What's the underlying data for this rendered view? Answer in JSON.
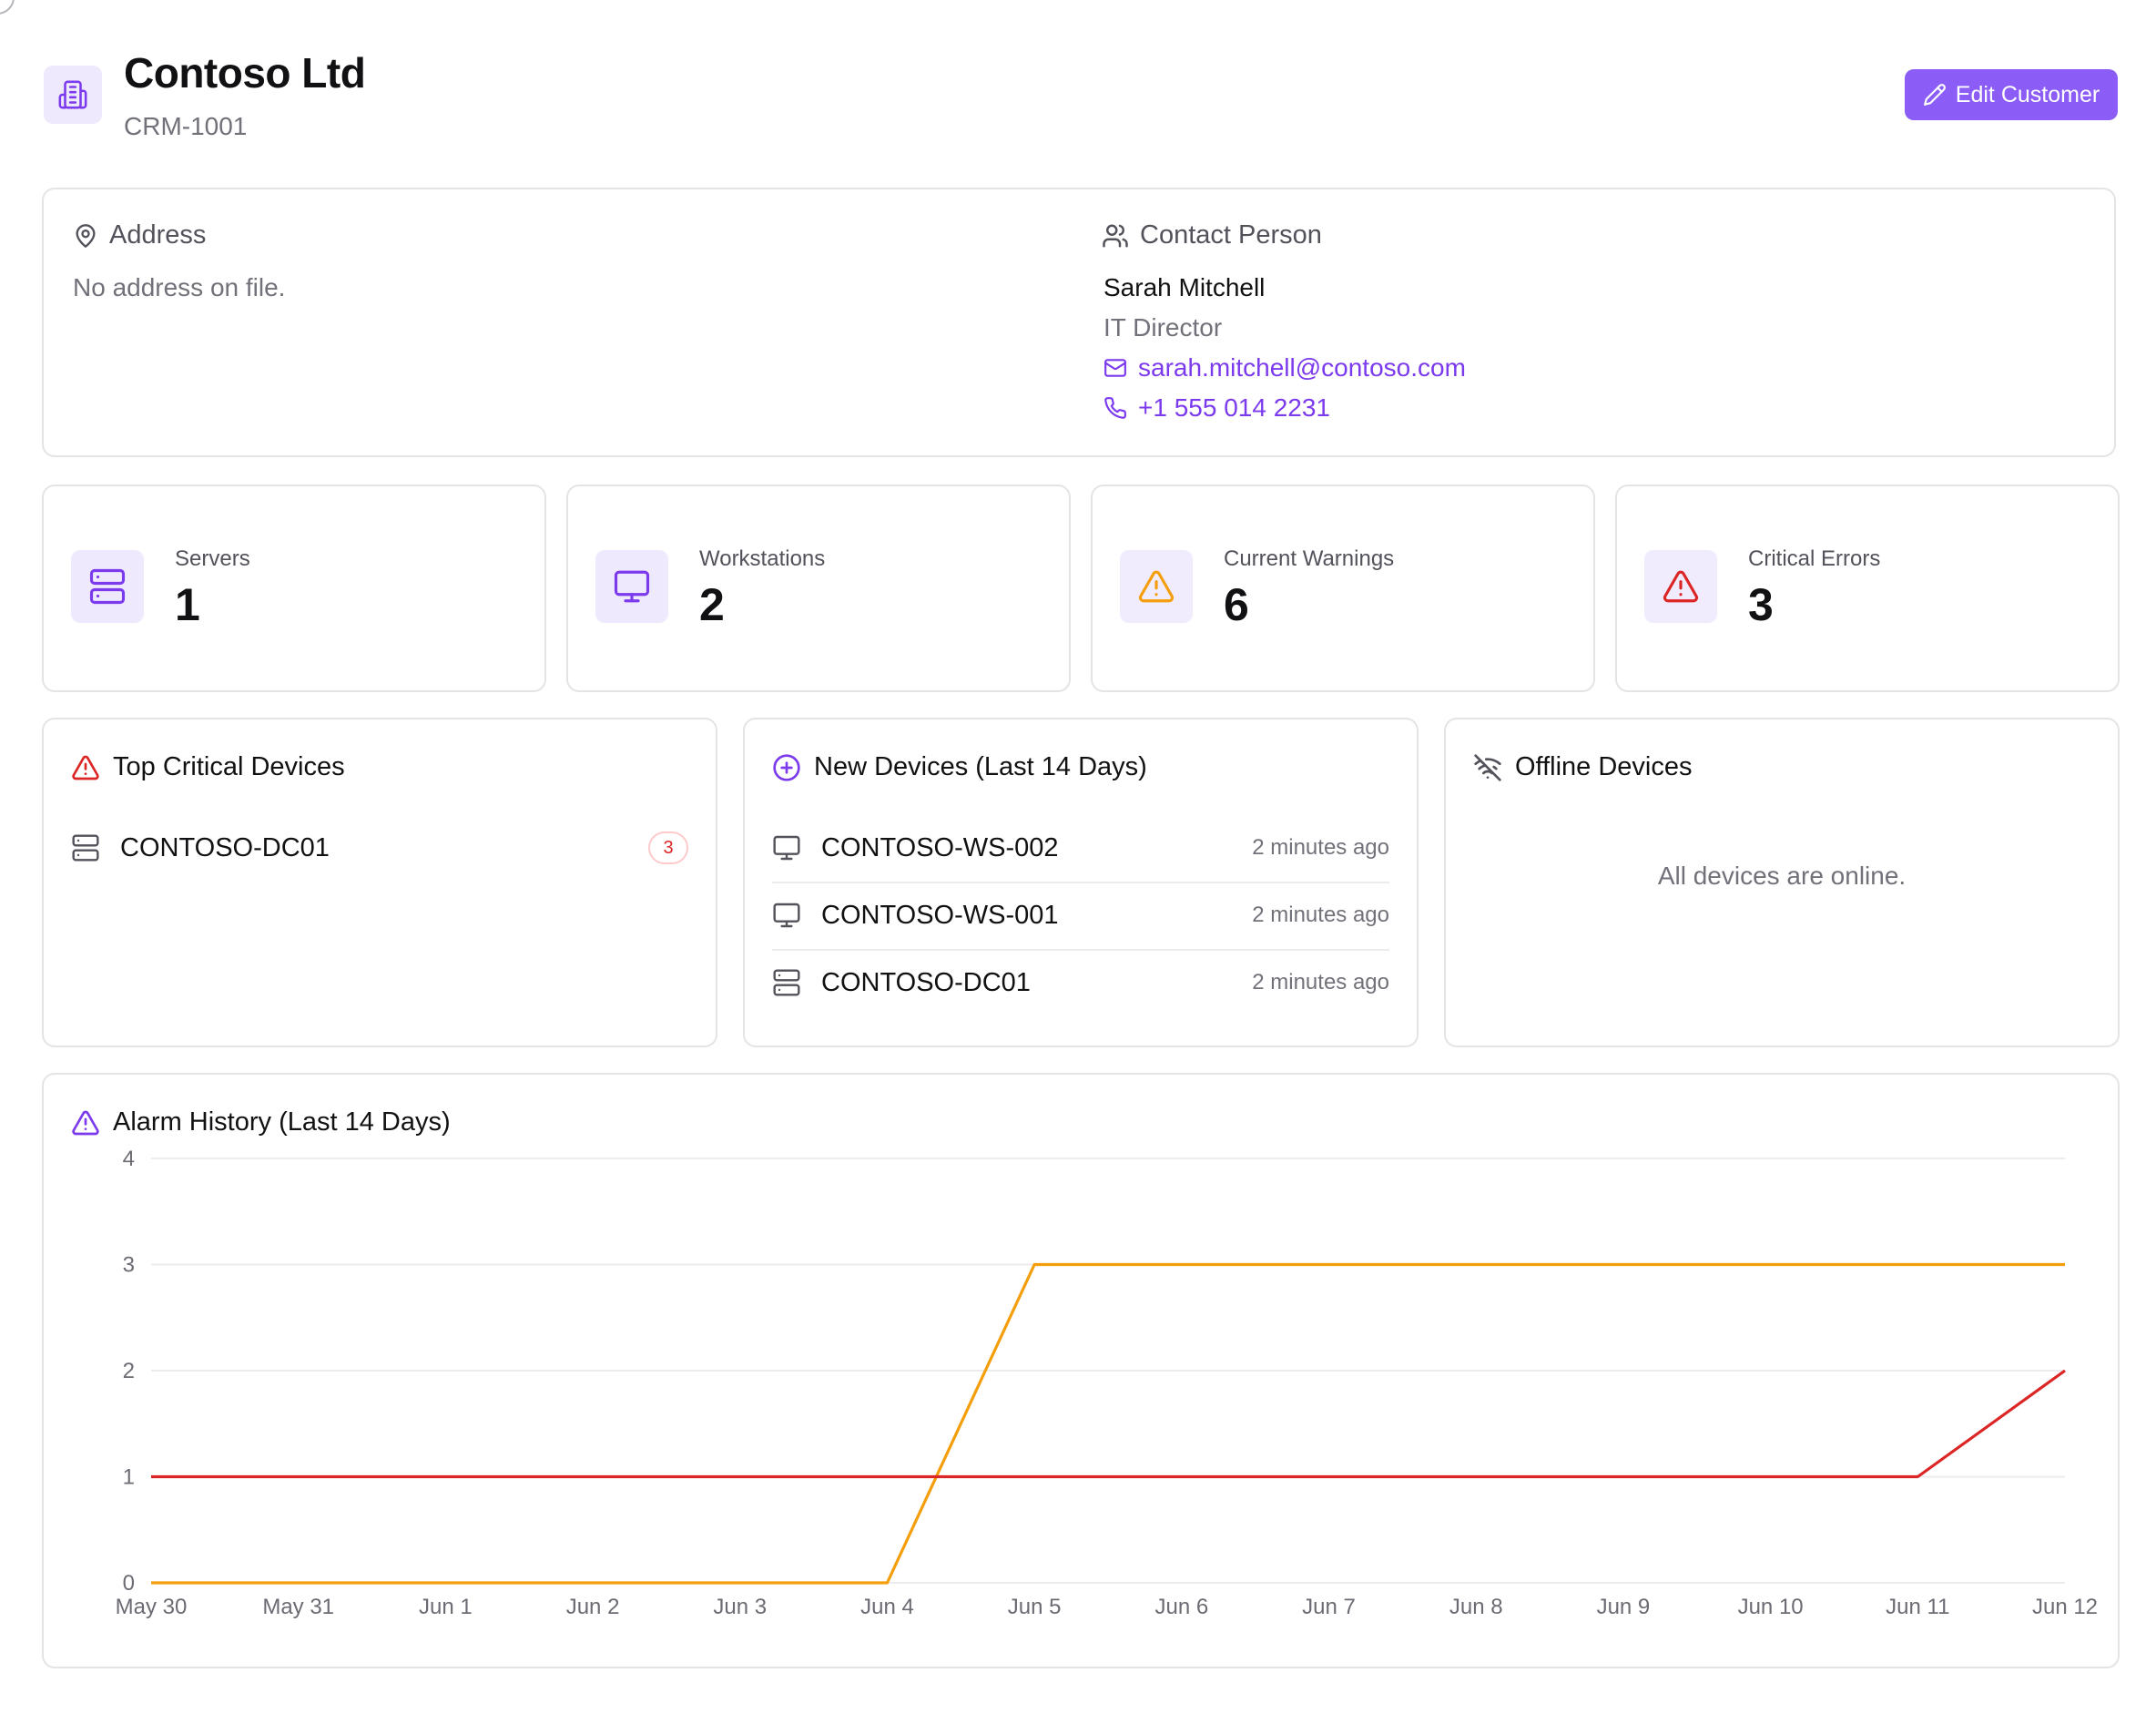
{
  "header": {
    "title": "Contoso Ltd",
    "customer_id": "CRM-1001",
    "edit_label": "Edit Customer"
  },
  "address": {
    "heading": "Address",
    "text": "No address on file."
  },
  "contact": {
    "heading": "Contact Person",
    "name": "Sarah Mitchell",
    "role": "IT Director",
    "email": "sarah.mitchell@contoso.com",
    "phone": "+1 555 014 2231"
  },
  "stats": [
    {
      "label": "Servers",
      "value": "1",
      "icon": "server-icon",
      "color": "#7c3aed",
      "bg": "#efe9fe"
    },
    {
      "label": "Workstations",
      "value": "2",
      "icon": "monitor-icon",
      "color": "#7c3aed",
      "bg": "#efe9fe"
    },
    {
      "label": "Current Warnings",
      "value": "6",
      "icon": "warning-icon",
      "color": "#f59e0b",
      "bg": "#f1ecfd"
    },
    {
      "label": "Critical Errors",
      "value": "3",
      "icon": "alert-icon",
      "color": "#dc2626",
      "bg": "#f1ecfd"
    }
  ],
  "top_critical": {
    "title": "Top Critical Devices",
    "items": [
      {
        "name": "CONTOSO-DC01",
        "count": "3"
      }
    ]
  },
  "new_devices": {
    "title": "New Devices (Last 14 Days)",
    "items": [
      {
        "name": "CONTOSO-WS-002",
        "time": "2 minutes ago",
        "icon": "monitor-icon"
      },
      {
        "name": "CONTOSO-WS-001",
        "time": "2 minutes ago",
        "icon": "monitor-icon"
      },
      {
        "name": "CONTOSO-DC01",
        "time": "2 minutes ago",
        "icon": "server-icon"
      }
    ]
  },
  "offline": {
    "title": "Offline Devices",
    "message": "All devices are online."
  },
  "chart_data": {
    "type": "line",
    "title": "Alarm History (Last 14 Days)",
    "categories": [
      "May 30",
      "May 31",
      "Jun 1",
      "Jun 2",
      "Jun 3",
      "Jun 4",
      "Jun 5",
      "Jun 6",
      "Jun 7",
      "Jun 8",
      "Jun 9",
      "Jun 10",
      "Jun 11",
      "Jun 12"
    ],
    "yticks": [
      "0",
      "1",
      "2",
      "3",
      "4"
    ],
    "ylim": [
      0,
      4
    ],
    "grid": true,
    "series": [
      {
        "color": "#f59e0b",
        "values": [
          0,
          0,
          0,
          0,
          0,
          0,
          3,
          3,
          3,
          3,
          3,
          3,
          3,
          3
        ]
      },
      {
        "color": "#dc2626",
        "values": [
          1,
          1,
          1,
          1,
          1,
          1,
          1,
          1,
          1,
          1,
          1,
          1,
          1,
          2
        ]
      }
    ]
  }
}
